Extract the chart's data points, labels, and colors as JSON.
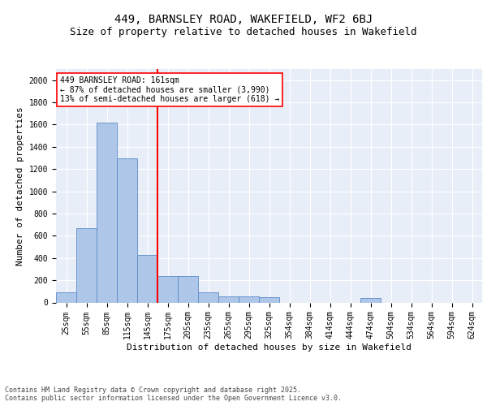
{
  "title1": "449, BARNSLEY ROAD, WAKEFIELD, WF2 6BJ",
  "title2": "Size of property relative to detached houses in Wakefield",
  "xlabel": "Distribution of detached houses by size in Wakefield",
  "ylabel": "Number of detached properties",
  "categories": [
    "25sqm",
    "55sqm",
    "85sqm",
    "115sqm",
    "145sqm",
    "175sqm",
    "205sqm",
    "235sqm",
    "265sqm",
    "295sqm",
    "325sqm",
    "354sqm",
    "384sqm",
    "414sqm",
    "444sqm",
    "474sqm",
    "504sqm",
    "534sqm",
    "564sqm",
    "594sqm",
    "624sqm"
  ],
  "values": [
    90,
    670,
    1620,
    1300,
    430,
    240,
    240,
    90,
    55,
    55,
    45,
    0,
    0,
    0,
    0,
    40,
    0,
    0,
    0,
    0,
    0
  ],
  "bar_color": "#aec6e8",
  "bar_edge_color": "#5b8bc9",
  "vline_color": "red",
  "vline_pos": 4.5,
  "annotation_text": "449 BARNSLEY ROAD: 161sqm\n← 87% of detached houses are smaller (3,990)\n13% of semi-detached houses are larger (618) →",
  "annotation_box_color": "white",
  "annotation_box_edge": "red",
  "ylim": [
    0,
    2100
  ],
  "yticks": [
    0,
    200,
    400,
    600,
    800,
    1000,
    1200,
    1400,
    1600,
    1800,
    2000
  ],
  "bg_color": "#e8eef8",
  "grid_color": "white",
  "footer": "Contains HM Land Registry data © Crown copyright and database right 2025.\nContains public sector information licensed under the Open Government Licence v3.0.",
  "title1_fontsize": 10,
  "title2_fontsize": 9,
  "axis_label_fontsize": 8,
  "tick_fontsize": 7,
  "annot_fontsize": 7,
  "footer_fontsize": 6
}
